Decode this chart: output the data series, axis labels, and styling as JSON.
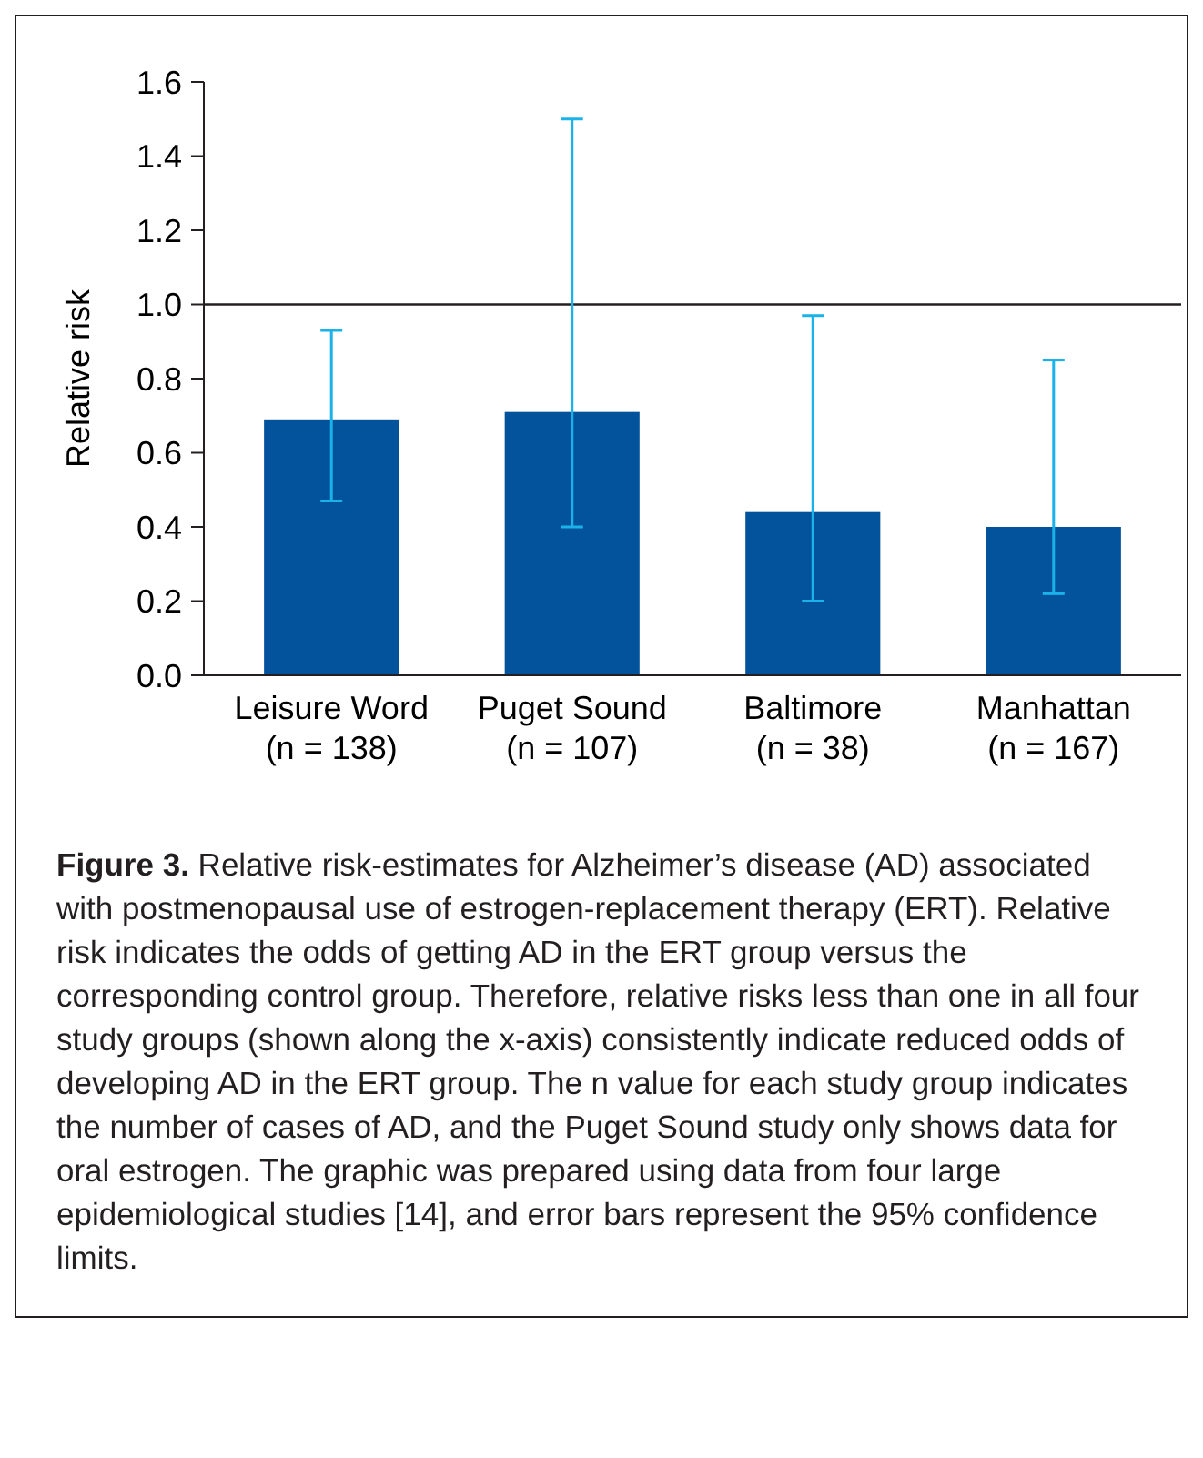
{
  "chart_data": {
    "type": "bar",
    "ylabel": "Relative risk",
    "categories": [
      "Leisure Word\n(n = 138)",
      "Puget Sound\n(n = 107)",
      "Baltimore\n(n = 38)",
      "Manhattan\n(n = 167)"
    ],
    "values": [
      0.69,
      0.71,
      0.44,
      0.4
    ],
    "errors": [
      [
        0.47,
        0.93
      ],
      [
        0.4,
        1.5
      ],
      [
        0.2,
        0.97
      ],
      [
        0.22,
        0.85
      ]
    ],
    "color": "#03529c",
    "ylim": [
      0,
      1.6
    ],
    "yticks": [
      {
        "value": 0,
        "label": "0.0"
      },
      0.2,
      0.4,
      0.6,
      0.8,
      {
        "value": 1,
        "label": "1.0"
      },
      1.2,
      1.4,
      1.6
    ],
    "ref_lines": [
      {
        "axis": "y",
        "value": 1,
        "color": "#231f20"
      }
    ],
    "grid": false,
    "annotations": [
      "Figure 3. Relative risk-estimates for Alzheimer’s disease (AD) associated with postmenopausal use of estrogen-replacement therapy (ERT). Relative risk indicates the odds of getting AD in the ERT group versus the corresponding control group. Therefore, relative risks less than one in all four study groups (shown along the x-axis) consistently indicate reduced odds of developing AD in the ERT group. The n value for each study group indicates the number of cases of AD, and the Puget Sound study only shows data for oral estrogen. The graphic was prepared using data from four large epidemiological studies [14], and error bars represent the 95% confidence limits."
    ]
  }
}
